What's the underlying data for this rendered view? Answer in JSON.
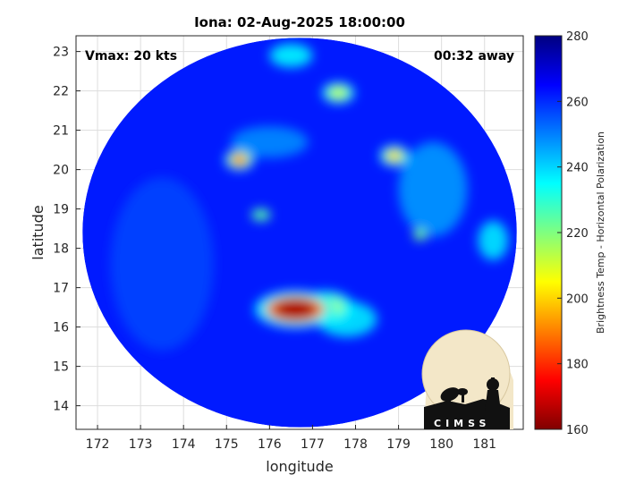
{
  "chart_data": {
    "type": "heatmap",
    "title": "Iona: 02-Aug-2025 18:00:00",
    "annotations": {
      "vmax": "Vmax: 20 kts",
      "time_away": "00:32 away"
    },
    "xlabel": "longitude",
    "ylabel": "latitude",
    "xlim": [
      171.5,
      181.9
    ],
    "ylim": [
      13.4,
      23.4
    ],
    "xticks": [
      172,
      173,
      174,
      175,
      176,
      177,
      178,
      179,
      180,
      181
    ],
    "yticks": [
      14,
      15,
      16,
      17,
      18,
      19,
      20,
      21,
      22,
      23
    ],
    "grid": true,
    "colorbar": {
      "label": "Brightness Temp - Horizontal Polarization",
      "range": [
        160,
        280
      ],
      "ticks": [
        160,
        180,
        200,
        220,
        240,
        260,
        280
      ],
      "colormap": "jet",
      "position": "right"
    },
    "swath": {
      "center": [
        176.7,
        18.4
      ],
      "radius_lon": 5.05,
      "radius_lat": 4.95,
      "background_value": 262
    },
    "features": [
      {
        "lon": 176.6,
        "lat": 16.45,
        "value": 165,
        "spread_lon": 0.5,
        "spread_lat": 0.25
      },
      {
        "lon": 177.3,
        "lat": 16.5,
        "value": 210,
        "spread_lon": 0.35,
        "spread_lat": 0.22
      },
      {
        "lon": 175.3,
        "lat": 20.25,
        "value": 190,
        "spread_lon": 0.18,
        "spread_lat": 0.14
      },
      {
        "lon": 178.9,
        "lat": 20.35,
        "value": 200,
        "spread_lon": 0.18,
        "spread_lat": 0.14
      },
      {
        "lon": 177.6,
        "lat": 21.95,
        "value": 212,
        "spread_lon": 0.2,
        "spread_lat": 0.14
      },
      {
        "lon": 175.8,
        "lat": 18.85,
        "value": 225,
        "spread_lon": 0.22,
        "spread_lat": 0.15
      },
      {
        "lon": 179.5,
        "lat": 18.35,
        "value": 222,
        "spread_lon": 0.15,
        "spread_lat": 0.15
      },
      {
        "lon": 176.5,
        "lat": 22.9,
        "value": 238,
        "spread_lon": 0.5,
        "spread_lat": 0.3
      },
      {
        "lon": 177.8,
        "lat": 16.2,
        "value": 240,
        "spread_lon": 0.7,
        "spread_lat": 0.45
      },
      {
        "lon": 181.2,
        "lat": 18.2,
        "value": 240,
        "spread_lon": 0.35,
        "spread_lat": 0.5
      },
      {
        "lon": 173.5,
        "lat": 17.6,
        "value": 256,
        "spread_lon": 1.2,
        "spread_lat": 2.2
      },
      {
        "lon": 179.8,
        "lat": 19.5,
        "value": 244,
        "spread_lon": 0.8,
        "spread_lat": 1.2
      },
      {
        "lon": 176.0,
        "lat": 20.7,
        "value": 246,
        "spread_lon": 0.9,
        "spread_lat": 0.4
      }
    ]
  },
  "logo": {
    "text": "CIMSS"
  }
}
